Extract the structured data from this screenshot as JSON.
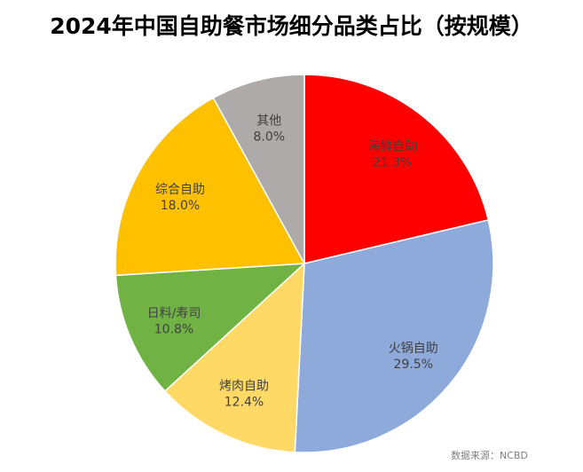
{
  "chart_data": {
    "type": "pie",
    "title": "2024年中国自助餐市场细分品类占比（按规模）",
    "categories": [
      "海鲜自助",
      "火锅自助",
      "烤肉自助",
      "日料/寿司",
      "综合自助",
      "其他"
    ],
    "values": [
      21.3,
      29.5,
      12.4,
      10.8,
      18.0,
      8.0
    ],
    "value_labels": [
      "21.3%",
      "29.5%",
      "12.4%",
      "10.8%",
      "18.0%",
      "8.0%"
    ],
    "colors": [
      "#ff0000",
      "#8eaadb",
      "#ffd966",
      "#70b244",
      "#ffc000",
      "#aeaaaa"
    ],
    "start_angle": "12 o'clock",
    "direction": "clockwise",
    "source": "数据来源：NCBD"
  }
}
